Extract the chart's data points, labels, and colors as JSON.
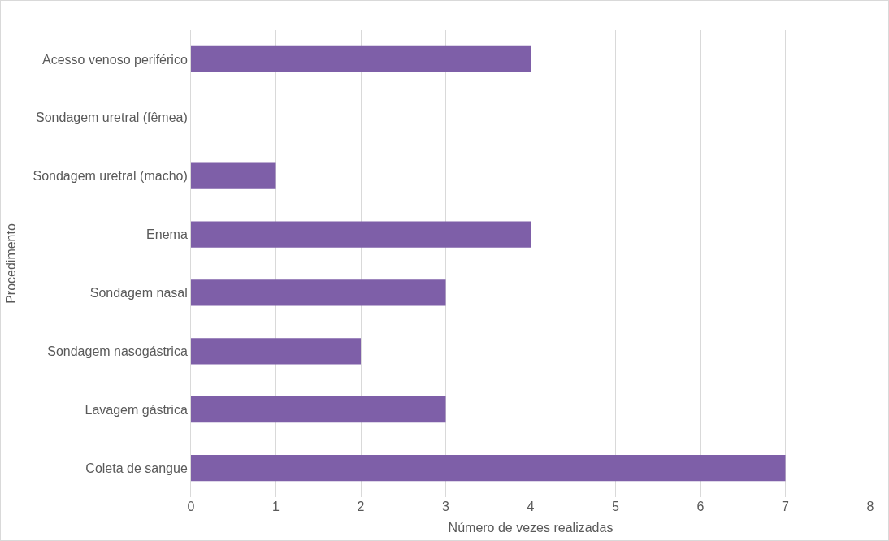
{
  "chart_data": {
    "type": "bar",
    "orientation": "horizontal",
    "xlabel": "Número de vezes realizadas",
    "ylabel": "Procedimento",
    "categories": [
      "Acesso venoso periférico",
      "Sondagem uretral (fêmea)",
      "Sondagem uretral (macho)",
      "Enema",
      "Sondagem nasal",
      "Sondagem nasogástrica",
      "Lavagem gástrica",
      "Coleta de sangue"
    ],
    "values": [
      4,
      0,
      1,
      4,
      3,
      2,
      3,
      7
    ],
    "color": "#7e5fa8",
    "xlim": [
      0,
      8
    ],
    "xticks": [
      0,
      1,
      2,
      3,
      4,
      5,
      6,
      7,
      8
    ],
    "grid": "x"
  }
}
